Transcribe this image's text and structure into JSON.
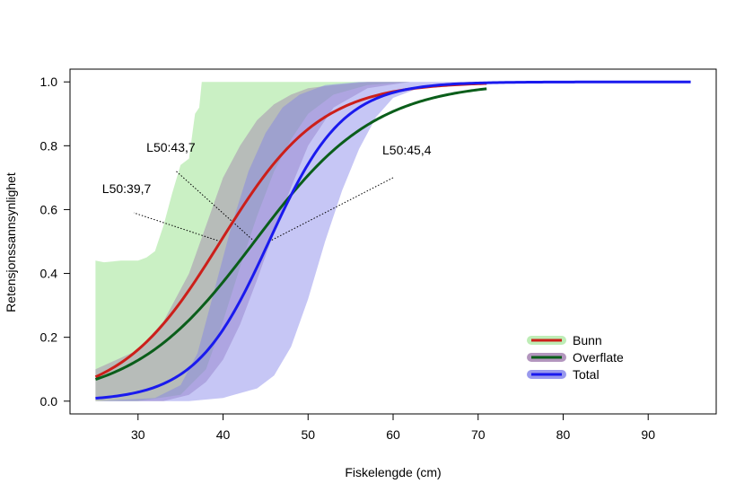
{
  "chart_data": {
    "type": "line",
    "xlabel": "Fiskelengde (cm)",
    "ylabel": "Retensjonssannsynlighet",
    "xlim": [
      22,
      98
    ],
    "ylim": [
      -0.04,
      1.04
    ],
    "xticks": [
      30,
      40,
      50,
      60,
      70,
      80,
      90
    ],
    "yticks": [
      0.0,
      0.2,
      0.4,
      0.6,
      0.8,
      1.0
    ],
    "ytick_labels": [
      "0.0",
      "0.2",
      "0.4",
      "0.6",
      "0.8",
      "1.0"
    ],
    "grid": false,
    "legend_position": "bottom-right",
    "series": [
      {
        "name": "Bunn",
        "color": "#cc1f1a",
        "band_color": "#aee8a4",
        "band_opacity": 0.65,
        "x_range": [
          25,
          71
        ],
        "l50": 39.7,
        "slope": 0.17,
        "band_lower": [
          [
            25,
            0.0
          ],
          [
            30,
            0.0
          ],
          [
            35,
            0.02
          ],
          [
            38,
            0.1
          ],
          [
            40,
            0.25
          ],
          [
            42,
            0.42
          ],
          [
            44,
            0.58
          ],
          [
            46,
            0.72
          ],
          [
            48,
            0.82
          ],
          [
            50,
            0.9
          ],
          [
            53,
            0.96
          ],
          [
            57,
            0.99
          ],
          [
            62,
            1.0
          ],
          [
            71,
            1.0
          ]
        ],
        "band_upper": [
          [
            25,
            0.44
          ],
          [
            26,
            0.435
          ],
          [
            28,
            0.44
          ],
          [
            30,
            0.44
          ],
          [
            31,
            0.45
          ],
          [
            32,
            0.47
          ],
          [
            33,
            0.55
          ],
          [
            34,
            0.65
          ],
          [
            35,
            0.74
          ],
          [
            36,
            0.76
          ],
          [
            36.7,
            0.9
          ],
          [
            37.2,
            0.92
          ],
          [
            37.5,
            1.0
          ],
          [
            71,
            1.0
          ]
        ]
      },
      {
        "name": "Overflate",
        "color": "#0a5e1a",
        "band_color": "#a07cae",
        "band_opacity": 0.45,
        "x_range": [
          25,
          71
        ],
        "l50": 43.7,
        "slope": 0.14,
        "band_lower": [
          [
            25,
            0.0
          ],
          [
            33,
            0.0
          ],
          [
            36,
            0.02
          ],
          [
            38,
            0.06
          ],
          [
            40,
            0.13
          ],
          [
            42,
            0.24
          ],
          [
            44,
            0.38
          ],
          [
            46,
            0.53
          ],
          [
            48,
            0.67
          ],
          [
            50,
            0.8
          ],
          [
            53,
            0.92
          ],
          [
            57,
            0.98
          ],
          [
            62,
            1.0
          ],
          [
            71,
            1.0
          ]
        ],
        "band_upper": [
          [
            25,
            0.1
          ],
          [
            30,
            0.16
          ],
          [
            33,
            0.25
          ],
          [
            36,
            0.4
          ],
          [
            38,
            0.55
          ],
          [
            40,
            0.7
          ],
          [
            42,
            0.8
          ],
          [
            44,
            0.88
          ],
          [
            46,
            0.93
          ],
          [
            48,
            0.96
          ],
          [
            50,
            0.98
          ],
          [
            53,
            0.99
          ],
          [
            57,
            1.0
          ],
          [
            71,
            1.0
          ]
        ]
      },
      {
        "name": "Total",
        "color": "#1a1aee",
        "band_color": "#8080e8",
        "band_opacity": 0.45,
        "x_range": [
          25,
          95
        ],
        "l50": 45.4,
        "slope": 0.23,
        "band_lower": [
          [
            25,
            0.0
          ],
          [
            36,
            0.0
          ],
          [
            40,
            0.01
          ],
          [
            44,
            0.04
          ],
          [
            46,
            0.08
          ],
          [
            48,
            0.17
          ],
          [
            50,
            0.32
          ],
          [
            52,
            0.5
          ],
          [
            54,
            0.66
          ],
          [
            56,
            0.79
          ],
          [
            58,
            0.89
          ],
          [
            60,
            0.95
          ],
          [
            63,
            0.98
          ],
          [
            66,
            0.995
          ],
          [
            70,
            1.0
          ],
          [
            95,
            1.0
          ]
        ],
        "band_upper": [
          [
            25,
            0.0
          ],
          [
            32,
            0.01
          ],
          [
            35,
            0.05
          ],
          [
            37,
            0.15
          ],
          [
            39,
            0.35
          ],
          [
            41,
            0.55
          ],
          [
            43,
            0.72
          ],
          [
            45,
            0.84
          ],
          [
            47,
            0.92
          ],
          [
            49,
            0.96
          ],
          [
            52,
            0.99
          ],
          [
            56,
            1.0
          ],
          [
            95,
            1.0
          ]
        ]
      }
    ],
    "annotations": [
      {
        "text": "L50:39,7",
        "point": [
          39.7,
          0.5
        ],
        "line_end": [
          29.5,
          0.59
        ]
      },
      {
        "text": "L50:43,7",
        "point": [
          43.7,
          0.5
        ],
        "line_end": [
          34.5,
          0.72
        ]
      },
      {
        "text": "L50:45,4",
        "point": [
          45.4,
          0.5
        ],
        "line_end": [
          60,
          0.7
        ]
      }
    ]
  }
}
